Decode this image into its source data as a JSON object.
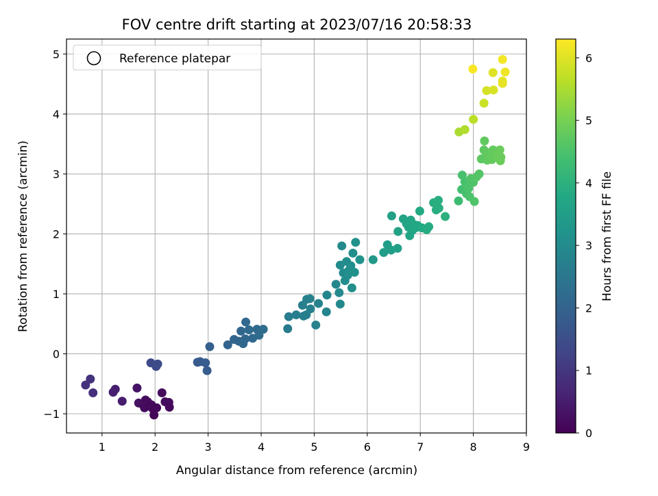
{
  "chart_data": {
    "type": "scatter",
    "title": "FOV centre drift starting at 2023/07/16 20:58:33",
    "xlabel": "Angular distance from reference (arcmin)",
    "ylabel": "Rotation from reference (arcmin)",
    "xlim": [
      0.33,
      9.0
    ],
    "ylim": [
      -1.32,
      5.25
    ],
    "xticks": [
      1,
      2,
      3,
      4,
      5,
      6,
      7,
      8,
      9
    ],
    "yticks": [
      -1,
      0,
      1,
      2,
      3,
      4,
      5
    ],
    "grid": true,
    "legend": {
      "location": "top-left",
      "entries": [
        "Reference platepar"
      ]
    },
    "colorbar": {
      "label": "Hours from first FF file",
      "min": 0,
      "max": 6.3,
      "ticks": [
        0,
        1,
        2,
        3,
        4,
        5,
        6
      ],
      "colormap": "viridis"
    },
    "points": [
      {
        "x": 0.69,
        "y": -0.52,
        "c": 0.9
      },
      {
        "x": 0.78,
        "y": -0.42,
        "c": 0.9
      },
      {
        "x": 0.83,
        "y": -0.65,
        "c": 0.85
      },
      {
        "x": 1.21,
        "y": -0.64,
        "c": 0.55
      },
      {
        "x": 1.25,
        "y": -0.59,
        "c": 0.55
      },
      {
        "x": 1.38,
        "y": -0.79,
        "c": 0.5
      },
      {
        "x": 1.66,
        "y": -0.57,
        "c": 0.35
      },
      {
        "x": 1.69,
        "y": -0.82,
        "c": 0.3
      },
      {
        "x": 1.76,
        "y": -0.84,
        "c": 0.25
      },
      {
        "x": 1.8,
        "y": -0.9,
        "c": 0.2
      },
      {
        "x": 1.82,
        "y": -0.77,
        "c": 0.2
      },
      {
        "x": 1.86,
        "y": -0.8,
        "c": 0.2
      },
      {
        "x": 1.89,
        "y": -0.87,
        "c": 0.15
      },
      {
        "x": 1.93,
        "y": -0.85,
        "c": 0.15
      },
      {
        "x": 1.96,
        "y": -0.92,
        "c": 0.1
      },
      {
        "x": 1.98,
        "y": -1.02,
        "c": 0.05
      },
      {
        "x": 2.03,
        "y": -0.9,
        "c": 0.1
      },
      {
        "x": 2.13,
        "y": -0.65,
        "c": 0.2
      },
      {
        "x": 2.19,
        "y": -0.8,
        "c": 0.2
      },
      {
        "x": 2.26,
        "y": -0.81,
        "c": 0.2
      },
      {
        "x": 2.27,
        "y": -0.89,
        "c": 0.15
      },
      {
        "x": 1.92,
        "y": -0.15,
        "c": 1.4
      },
      {
        "x": 2.02,
        "y": -0.21,
        "c": 1.4
      },
      {
        "x": 2.05,
        "y": -0.17,
        "c": 1.45
      },
      {
        "x": 2.8,
        "y": -0.14,
        "c": 1.8
      },
      {
        "x": 2.85,
        "y": -0.13,
        "c": 1.8
      },
      {
        "x": 2.95,
        "y": -0.15,
        "c": 1.85
      },
      {
        "x": 2.98,
        "y": -0.28,
        "c": 1.85
      },
      {
        "x": 3.03,
        "y": 0.12,
        "c": 1.9
      },
      {
        "x": 3.37,
        "y": 0.15,
        "c": 2.0
      },
      {
        "x": 3.49,
        "y": 0.24,
        "c": 2.05
      },
      {
        "x": 3.58,
        "y": 0.21,
        "c": 2.05
      },
      {
        "x": 3.62,
        "y": 0.38,
        "c": 2.1
      },
      {
        "x": 3.66,
        "y": 0.17,
        "c": 2.1
      },
      {
        "x": 3.7,
        "y": 0.25,
        "c": 2.1
      },
      {
        "x": 3.71,
        "y": 0.53,
        "c": 2.15
      },
      {
        "x": 3.77,
        "y": 0.4,
        "c": 2.15
      },
      {
        "x": 3.84,
        "y": 0.26,
        "c": 2.15
      },
      {
        "x": 3.92,
        "y": 0.41,
        "c": 2.2
      },
      {
        "x": 3.96,
        "y": 0.31,
        "c": 2.2
      },
      {
        "x": 4.04,
        "y": 0.41,
        "c": 2.25
      },
      {
        "x": 4.5,
        "y": 0.42,
        "c": 2.6
      },
      {
        "x": 4.52,
        "y": 0.62,
        "c": 2.6
      },
      {
        "x": 4.66,
        "y": 0.65,
        "c": 2.65
      },
      {
        "x": 4.78,
        "y": 0.81,
        "c": 2.7
      },
      {
        "x": 4.8,
        "y": 0.63,
        "c": 2.7
      },
      {
        "x": 4.85,
        "y": 0.65,
        "c": 2.7
      },
      {
        "x": 4.86,
        "y": 0.91,
        "c": 2.75
      },
      {
        "x": 4.92,
        "y": 0.92,
        "c": 2.75
      },
      {
        "x": 4.93,
        "y": 0.75,
        "c": 2.75
      },
      {
        "x": 5.03,
        "y": 0.48,
        "c": 2.8
      },
      {
        "x": 5.08,
        "y": 0.84,
        "c": 2.8
      },
      {
        "x": 5.23,
        "y": 0.7,
        "c": 2.85
      },
      {
        "x": 5.24,
        "y": 0.98,
        "c": 2.85
      },
      {
        "x": 5.41,
        "y": 1.16,
        "c": 2.9
      },
      {
        "x": 5.47,
        "y": 1.02,
        "c": 2.95
      },
      {
        "x": 5.49,
        "y": 0.83,
        "c": 2.95
      },
      {
        "x": 5.49,
        "y": 1.48,
        "c": 3.0
      },
      {
        "x": 5.52,
        "y": 1.8,
        "c": 3.0
      },
      {
        "x": 5.55,
        "y": 1.35,
        "c": 3.0
      },
      {
        "x": 5.58,
        "y": 1.22,
        "c": 3.05
      },
      {
        "x": 5.61,
        "y": 1.54,
        "c": 3.05
      },
      {
        "x": 5.63,
        "y": 1.31,
        "c": 3.05
      },
      {
        "x": 5.66,
        "y": 1.4,
        "c": 3.1
      },
      {
        "x": 5.69,
        "y": 1.47,
        "c": 3.1
      },
      {
        "x": 5.71,
        "y": 1.1,
        "c": 3.1
      },
      {
        "x": 5.73,
        "y": 1.68,
        "c": 3.1
      },
      {
        "x": 5.76,
        "y": 1.36,
        "c": 3.15
      },
      {
        "x": 5.78,
        "y": 1.86,
        "c": 3.15
      },
      {
        "x": 5.86,
        "y": 1.57,
        "c": 3.2
      },
      {
        "x": 6.11,
        "y": 1.57,
        "c": 3.35
      },
      {
        "x": 6.31,
        "y": 1.69,
        "c": 3.45
      },
      {
        "x": 6.38,
        "y": 1.82,
        "c": 3.5
      },
      {
        "x": 6.45,
        "y": 1.73,
        "c": 3.5
      },
      {
        "x": 6.46,
        "y": 2.3,
        "c": 3.6
      },
      {
        "x": 6.57,
        "y": 1.76,
        "c": 3.55
      },
      {
        "x": 6.58,
        "y": 2.04,
        "c": 3.6
      },
      {
        "x": 6.68,
        "y": 2.25,
        "c": 3.65
      },
      {
        "x": 6.74,
        "y": 2.17,
        "c": 3.65
      },
      {
        "x": 6.78,
        "y": 2.11,
        "c": 3.7
      },
      {
        "x": 6.8,
        "y": 1.97,
        "c": 3.7
      },
      {
        "x": 6.82,
        "y": 2.23,
        "c": 3.7
      },
      {
        "x": 6.85,
        "y": 2.06,
        "c": 3.7
      },
      {
        "x": 6.89,
        "y": 2.15,
        "c": 3.75
      },
      {
        "x": 6.91,
        "y": 2.1,
        "c": 3.75
      },
      {
        "x": 6.95,
        "y": 2.14,
        "c": 3.75
      },
      {
        "x": 6.99,
        "y": 2.38,
        "c": 3.8
      },
      {
        "x": 7.03,
        "y": 2.1,
        "c": 3.8
      },
      {
        "x": 7.12,
        "y": 2.07,
        "c": 3.85
      },
      {
        "x": 7.16,
        "y": 2.12,
        "c": 3.85
      },
      {
        "x": 7.25,
        "y": 2.52,
        "c": 3.9
      },
      {
        "x": 7.3,
        "y": 2.4,
        "c": 3.9
      },
      {
        "x": 7.34,
        "y": 2.56,
        "c": 3.95
      },
      {
        "x": 7.35,
        "y": 2.43,
        "c": 3.95
      },
      {
        "x": 7.47,
        "y": 2.29,
        "c": 4.0
      },
      {
        "x": 7.72,
        "y": 2.55,
        "c": 4.3
      },
      {
        "x": 7.78,
        "y": 2.74,
        "c": 4.4
      },
      {
        "x": 7.79,
        "y": 2.98,
        "c": 4.45
      },
      {
        "x": 7.84,
        "y": 2.87,
        "c": 4.45
      },
      {
        "x": 7.87,
        "y": 2.67,
        "c": 4.45
      },
      {
        "x": 7.89,
        "y": 2.79,
        "c": 4.5
      },
      {
        "x": 7.91,
        "y": 2.76,
        "c": 4.5
      },
      {
        "x": 7.93,
        "y": 2.62,
        "c": 4.5
      },
      {
        "x": 7.95,
        "y": 2.92,
        "c": 4.55
      },
      {
        "x": 8.0,
        "y": 2.86,
        "c": 4.55
      },
      {
        "x": 8.02,
        "y": 2.54,
        "c": 4.55
      },
      {
        "x": 8.06,
        "y": 2.95,
        "c": 4.6
      },
      {
        "x": 8.11,
        "y": 3.0,
        "c": 4.6
      },
      {
        "x": 8.15,
        "y": 3.25,
        "c": 4.7
      },
      {
        "x": 8.2,
        "y": 3.4,
        "c": 4.7
      },
      {
        "x": 8.21,
        "y": 3.55,
        "c": 4.75
      },
      {
        "x": 8.22,
        "y": 3.28,
        "c": 4.7
      },
      {
        "x": 8.25,
        "y": 3.36,
        "c": 4.75
      },
      {
        "x": 8.26,
        "y": 3.23,
        "c": 4.75
      },
      {
        "x": 8.29,
        "y": 3.3,
        "c": 4.75
      },
      {
        "x": 8.32,
        "y": 3.27,
        "c": 4.8
      },
      {
        "x": 8.35,
        "y": 3.24,
        "c": 4.8
      },
      {
        "x": 8.37,
        "y": 3.4,
        "c": 4.8
      },
      {
        "x": 8.4,
        "y": 3.35,
        "c": 4.8
      },
      {
        "x": 8.43,
        "y": 3.38,
        "c": 4.8
      },
      {
        "x": 8.47,
        "y": 3.3,
        "c": 4.85
      },
      {
        "x": 8.5,
        "y": 3.4,
        "c": 4.85
      },
      {
        "x": 8.51,
        "y": 3.22,
        "c": 4.85
      },
      {
        "x": 8.52,
        "y": 3.28,
        "c": 4.85
      },
      {
        "x": 7.73,
        "y": 3.7,
        "c": 5.5
      },
      {
        "x": 7.84,
        "y": 3.74,
        "c": 5.55
      },
      {
        "x": 8.0,
        "y": 3.91,
        "c": 5.65
      },
      {
        "x": 8.2,
        "y": 4.18,
        "c": 5.8
      },
      {
        "x": 8.25,
        "y": 4.39,
        "c": 5.9
      },
      {
        "x": 8.38,
        "y": 4.4,
        "c": 5.95
      },
      {
        "x": 8.37,
        "y": 4.69,
        "c": 6.0
      },
      {
        "x": 8.55,
        "y": 4.51,
        "c": 6.05
      },
      {
        "x": 8.55,
        "y": 4.55,
        "c": 6.05
      },
      {
        "x": 8.6,
        "y": 4.7,
        "c": 6.15
      },
      {
        "x": 8.55,
        "y": 4.91,
        "c": 6.2
      },
      {
        "x": 7.99,
        "y": 4.75,
        "c": 6.25
      }
    ]
  }
}
